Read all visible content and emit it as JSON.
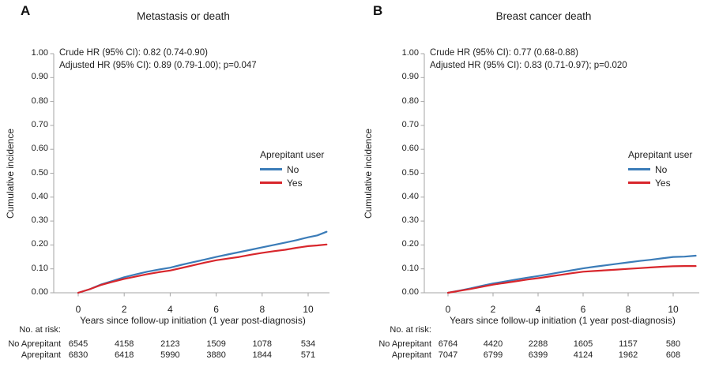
{
  "colors": {
    "no_line": "#3b7cb8",
    "yes_line": "#d8262c",
    "axis": "#a6a6a6",
    "text": "#1f1f1f"
  },
  "figure": {
    "panels": [
      {
        "panel_label": "A",
        "title": "Metastasis or death",
        "annotation": {
          "line1": "Crude HR (95% CI): 0.82 (0.74-0.90)",
          "line2": "Adjusted HR (95% CI): 0.89 (0.79-1.00); p=0.047"
        },
        "ylabel": "Cumulative incidence",
        "xlabel": "Years since follow-up initiation (1 year post-diagnosis)",
        "legend": {
          "title": "Aprepitant user",
          "items": [
            {
              "label": "No"
            },
            {
              "label": "Yes"
            }
          ]
        },
        "risk_table": {
          "header": "No. at risk:",
          "rows": [
            {
              "label": "No Aprepitant",
              "values": [
                "6545",
                "4158",
                "2123",
                "1509",
                "1078",
                "534"
              ]
            },
            {
              "label": "Aprepitant",
              "values": [
                "6830",
                "6418",
                "5990",
                "3880",
                "1844",
                "571"
              ]
            }
          ]
        }
      },
      {
        "panel_label": "B",
        "title": "Breast cancer death",
        "annotation": {
          "line1": "Crude HR (95% CI): 0.77 (0.68-0.88)",
          "line2": "Adjusted HR (95% CI): 0.83 (0.71-0.97); p=0.020"
        },
        "ylabel": "Cumulative incidence",
        "xlabel": "Years since follow-up initiation (1 year post-diagnosis)",
        "legend": {
          "title": "Aprepitant user",
          "items": [
            {
              "label": "No"
            },
            {
              "label": "Yes"
            }
          ]
        },
        "risk_table": {
          "header": "No. at risk:",
          "rows": [
            {
              "label": "No Aprepitant",
              "values": [
                "6764",
                "4420",
                "2288",
                "1605",
                "1157",
                "580"
              ]
            },
            {
              "label": "Aprepitant",
              "values": [
                "7047",
                "6799",
                "6399",
                "4124",
                "1962",
                "608"
              ]
            }
          ]
        }
      }
    ]
  },
  "chart_data": [
    {
      "type": "line",
      "title": "Metastasis or death",
      "xlabel": "Years since follow-up initiation (1 year post-diagnosis)",
      "ylabel": "Cumulative incidence",
      "legend_title": "Aprepitant user",
      "legend_position": "right-middle",
      "xlim": [
        0,
        11
      ],
      "ylim": [
        0,
        1
      ],
      "grid": false,
      "xticks": [
        0,
        2,
        4,
        6,
        8,
        10
      ],
      "xtick_labels": [
        "0",
        "2",
        "4",
        "6",
        "8",
        "10"
      ],
      "yticks": [
        0,
        0.1,
        0.2,
        0.3,
        0.4,
        0.5,
        0.6,
        0.7,
        0.8,
        0.9,
        1.0
      ],
      "ytick_labels": [
        "0.00",
        "0.10",
        "0.20",
        "0.30",
        "0.40",
        "0.50",
        "0.60",
        "0.70",
        "0.80",
        "0.90",
        "1.00"
      ],
      "x": [
        0,
        0.5,
        1,
        1.5,
        2,
        2.5,
        3,
        3.5,
        4,
        4.5,
        5,
        5.5,
        6,
        6.5,
        7,
        7.5,
        8,
        8.5,
        9,
        9.5,
        10,
        10.4,
        10.8
      ],
      "series": [
        {
          "name": "No",
          "color": "#3b7cb8",
          "values": [
            0,
            0.015,
            0.035,
            0.05,
            0.065,
            0.077,
            0.088,
            0.097,
            0.105,
            0.117,
            0.128,
            0.139,
            0.15,
            0.16,
            0.17,
            0.18,
            0.19,
            0.2,
            0.21,
            0.22,
            0.232,
            0.24,
            0.255
          ]
        },
        {
          "name": "Yes",
          "color": "#d8262c",
          "values": [
            0,
            0.015,
            0.033,
            0.046,
            0.058,
            0.068,
            0.078,
            0.086,
            0.093,
            0.104,
            0.115,
            0.126,
            0.136,
            0.143,
            0.15,
            0.159,
            0.167,
            0.174,
            0.18,
            0.188,
            0.195,
            0.198,
            0.202
          ]
        }
      ]
    },
    {
      "type": "line",
      "title": "Breast cancer death",
      "xlabel": "Years since follow-up initiation (1 year post-diagnosis)",
      "ylabel": "Cumulative incidence",
      "legend_title": "Aprepitant user",
      "legend_position": "right-middle",
      "xlim": [
        0,
        11
      ],
      "ylim": [
        0,
        1
      ],
      "grid": false,
      "xticks": [
        0,
        2,
        4,
        6,
        8,
        10
      ],
      "xtick_labels": [
        "0",
        "2",
        "4",
        "6",
        "8",
        "10"
      ],
      "yticks": [
        0,
        0.1,
        0.2,
        0.3,
        0.4,
        0.5,
        0.6,
        0.7,
        0.8,
        0.9,
        1.0
      ],
      "ytick_labels": [
        "0.00",
        "0.10",
        "0.20",
        "0.30",
        "0.40",
        "0.50",
        "0.60",
        "0.70",
        "0.80",
        "0.90",
        "1.00"
      ],
      "x": [
        0,
        0.5,
        1,
        1.5,
        2,
        2.5,
        3,
        3.5,
        4,
        4.5,
        5,
        5.5,
        6,
        6.5,
        7,
        7.5,
        8,
        8.5,
        9,
        9.5,
        10,
        10.5,
        11
      ],
      "series": [
        {
          "name": "No",
          "color": "#3b7cb8",
          "values": [
            0,
            0.009,
            0.018,
            0.029,
            0.039,
            0.047,
            0.055,
            0.063,
            0.07,
            0.078,
            0.086,
            0.094,
            0.102,
            0.109,
            0.115,
            0.121,
            0.127,
            0.133,
            0.138,
            0.144,
            0.15,
            0.151,
            0.155
          ]
        },
        {
          "name": "Yes",
          "color": "#d8262c",
          "values": [
            0,
            0.008,
            0.016,
            0.025,
            0.034,
            0.041,
            0.048,
            0.055,
            0.061,
            0.068,
            0.075,
            0.082,
            0.088,
            0.091,
            0.094,
            0.097,
            0.1,
            0.103,
            0.106,
            0.109,
            0.111,
            0.112,
            0.112
          ]
        }
      ]
    }
  ]
}
